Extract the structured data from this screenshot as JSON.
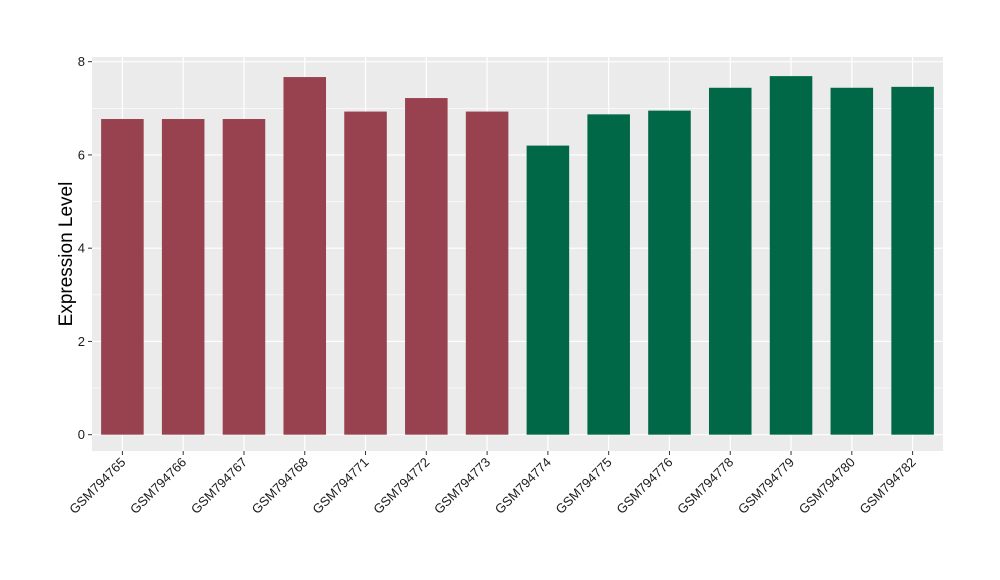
{
  "chart_data": {
    "type": "bar",
    "ylabel": "Expression Level",
    "xlabel": "",
    "ylim": [
      -0.35,
      8.1
    ],
    "yticks": [
      0,
      2,
      4,
      6,
      8
    ],
    "ytick_labels": [
      "0",
      "2",
      "4",
      "6",
      "8"
    ],
    "grid": true,
    "legend": "none",
    "categories": [
      "GSM794765",
      "GSM794766",
      "GSM794767",
      "GSM794768",
      "GSM794771",
      "GSM794772",
      "GSM794773",
      "GSM794774",
      "GSM794775",
      "GSM794776",
      "GSM794778",
      "GSM794779",
      "GSM794780",
      "GSM794782"
    ],
    "values": [
      6.77,
      6.77,
      6.77,
      7.67,
      6.93,
      7.22,
      6.93,
      6.2,
      6.87,
      6.95,
      7.44,
      7.69,
      7.44,
      7.46
    ],
    "bar_colors": [
      "#99424f",
      "#99424f",
      "#99424f",
      "#99424f",
      "#99424f",
      "#99424f",
      "#99424f",
      "#006847",
      "#006847",
      "#006847",
      "#006847",
      "#006847",
      "#006847",
      "#006847"
    ]
  },
  "colors": {
    "panel_background": "#ebebeb",
    "gridline": "#ffffff",
    "group_a": "#99424f",
    "group_b": "#006847"
  }
}
